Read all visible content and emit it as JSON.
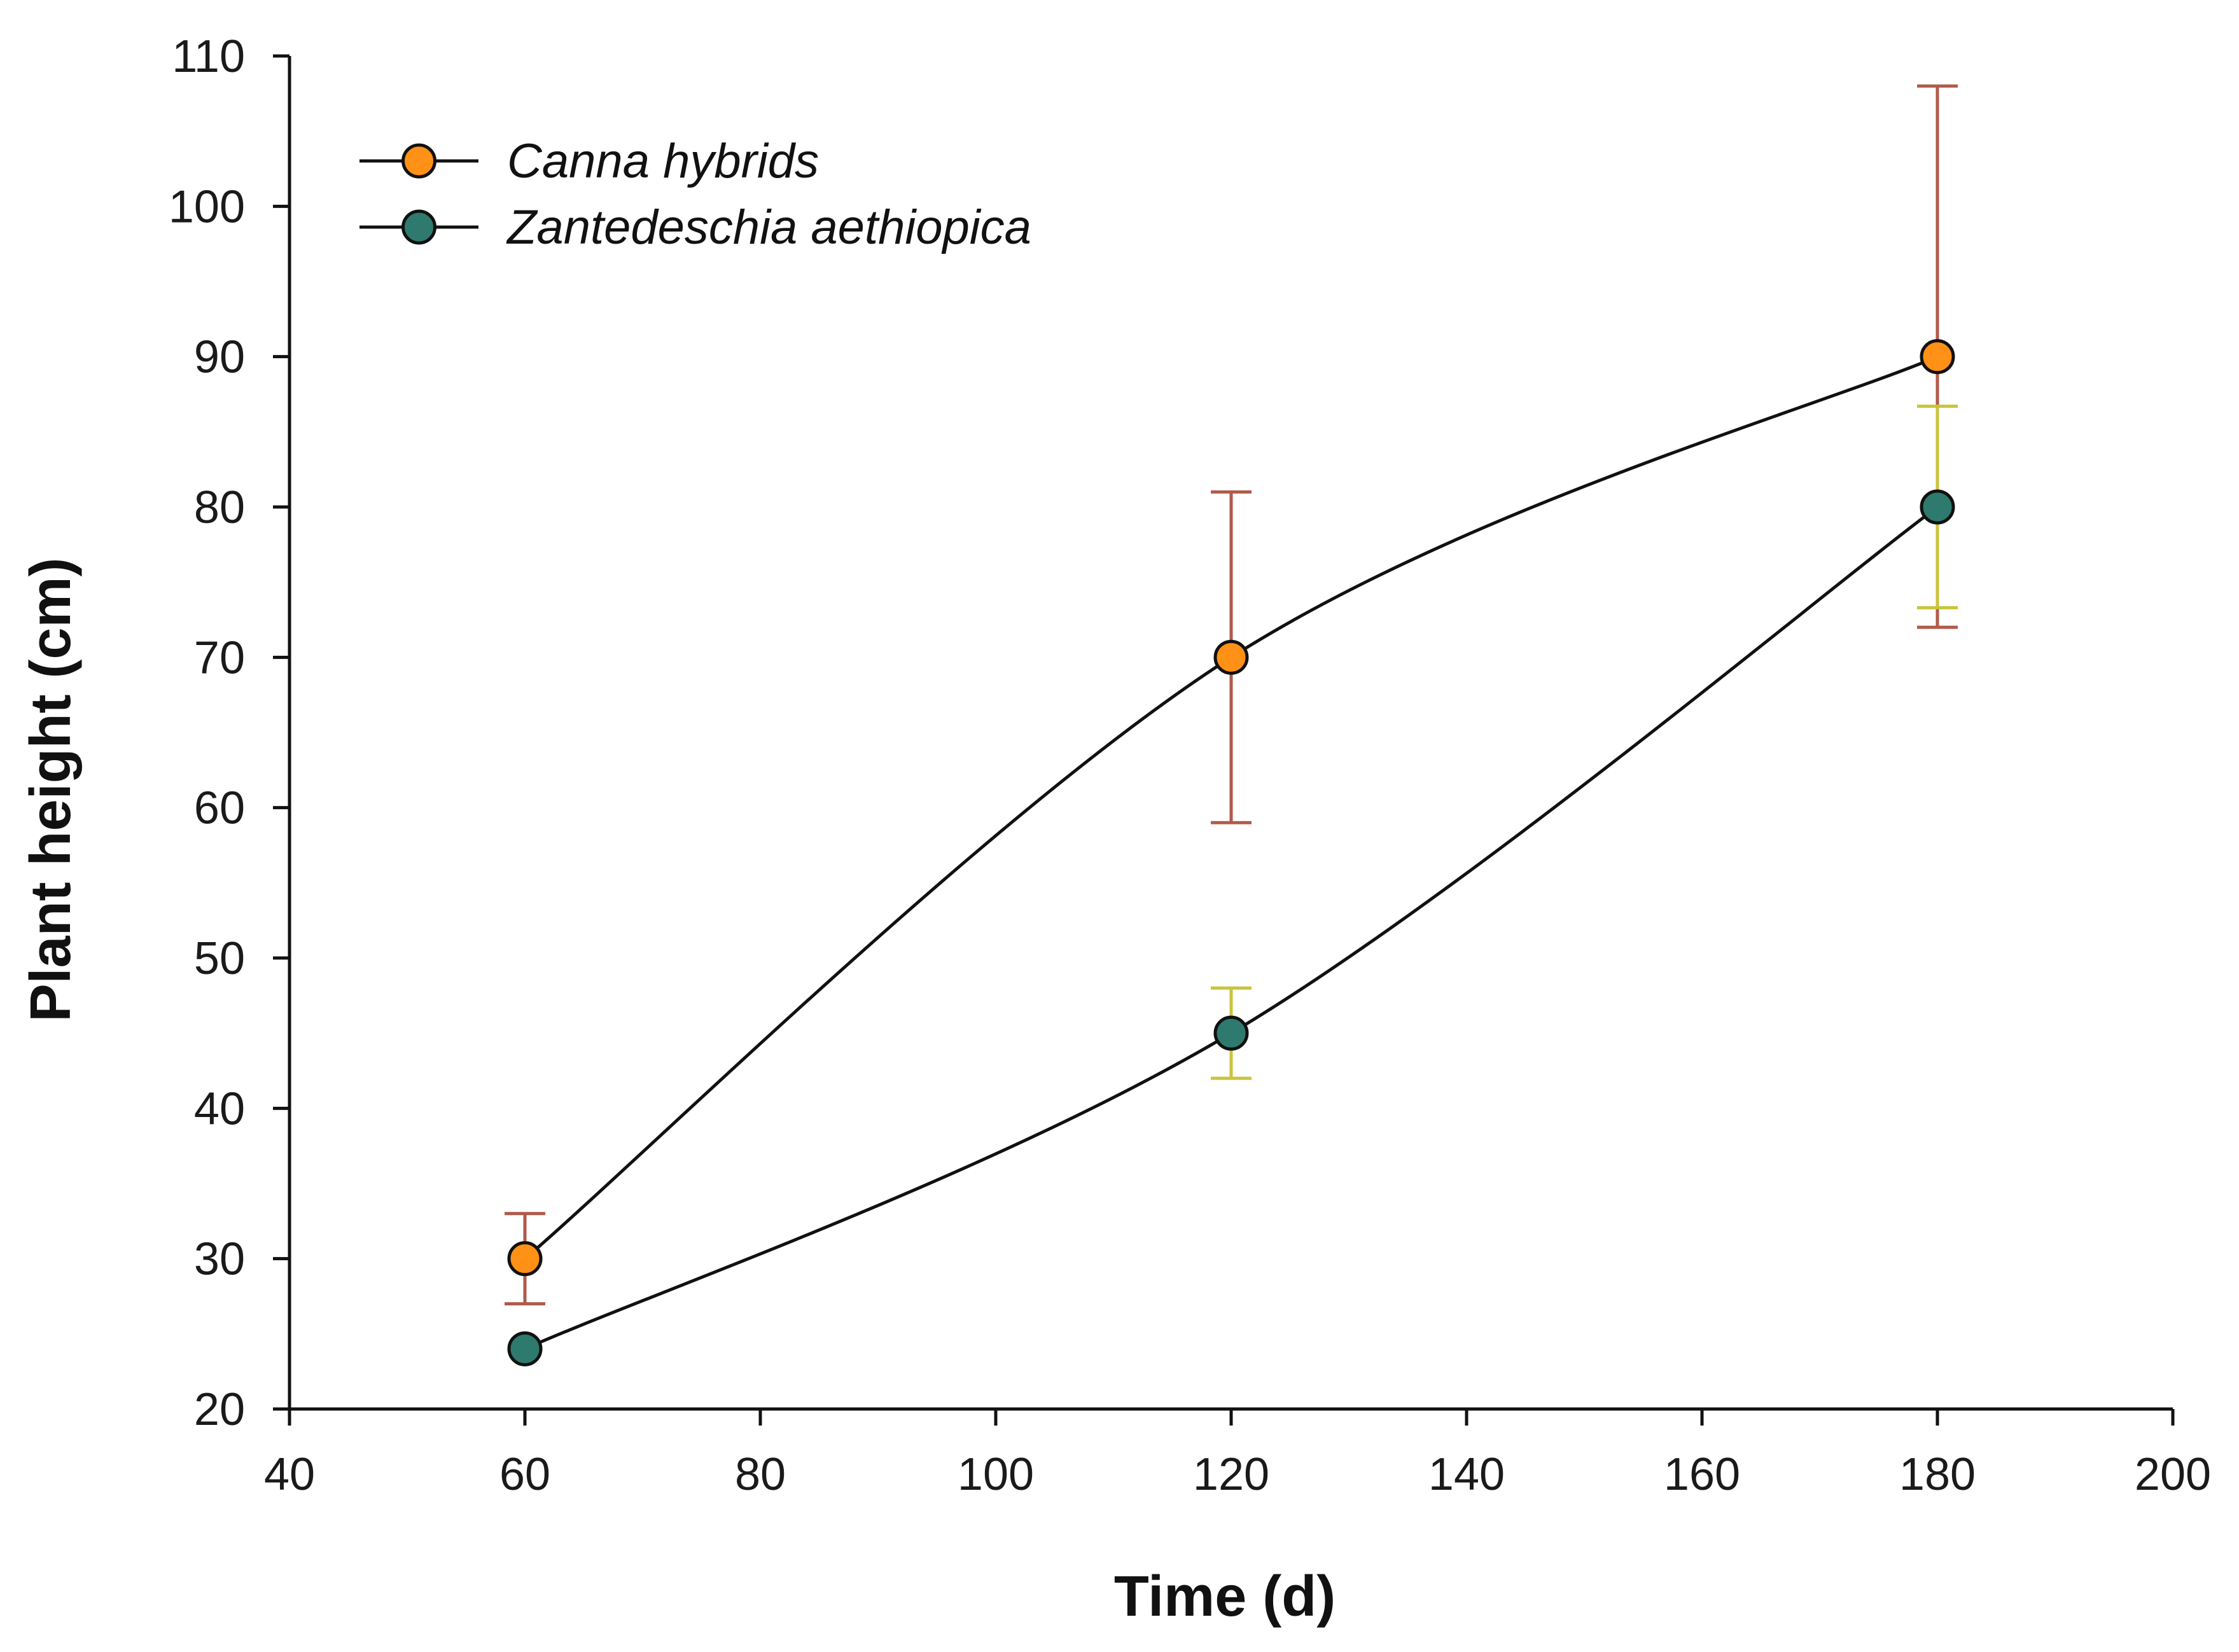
{
  "chart_data": {
    "type": "line",
    "title": "",
    "xlabel": "Time (d)",
    "ylabel": "Plant height (cm)",
    "xlim": [
      40,
      200
    ],
    "ylim": [
      20,
      110
    ],
    "xticks": [
      40,
      60,
      80,
      100,
      120,
      140,
      160,
      180,
      200
    ],
    "yticks": [
      20,
      30,
      40,
      50,
      60,
      70,
      80,
      90,
      100,
      110
    ],
    "grid": false,
    "legend_position": "top-left",
    "x": [
      60,
      120,
      180
    ],
    "series": [
      {
        "name": "Canna hybrids",
        "values": [
          30,
          70,
          90
        ],
        "error": [
          3,
          11,
          18
        ],
        "marker_color": "#ff9116",
        "error_color": "#b05a4a",
        "line_color": "#111111"
      },
      {
        "name": "Zantedeschia aethiopica",
        "values": [
          24,
          45,
          80
        ],
        "error": [
          0,
          3,
          6.7
        ],
        "marker_color": "#2f7a6e",
        "error_color": "#c9c43c",
        "line_color": "#111111"
      }
    ]
  }
}
